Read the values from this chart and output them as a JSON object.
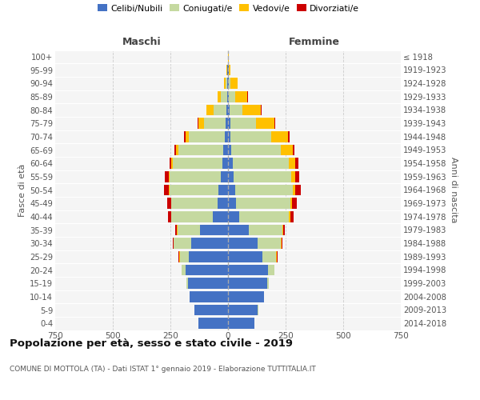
{
  "age_groups": [
    "0-4",
    "5-9",
    "10-14",
    "15-19",
    "20-24",
    "25-29",
    "30-34",
    "35-39",
    "40-44",
    "45-49",
    "50-54",
    "55-59",
    "60-64",
    "65-69",
    "70-74",
    "75-79",
    "80-84",
    "85-89",
    "90-94",
    "95-99",
    "100+"
  ],
  "birth_years": [
    "2014-2018",
    "2009-2013",
    "2004-2008",
    "1999-2003",
    "1994-1998",
    "1989-1993",
    "1984-1988",
    "1979-1983",
    "1974-1978",
    "1969-1973",
    "1964-1968",
    "1959-1963",
    "1954-1958",
    "1949-1953",
    "1944-1948",
    "1939-1943",
    "1934-1938",
    "1929-1933",
    "1924-1928",
    "1919-1923",
    "≤ 1918"
  ],
  "colors": {
    "celibi": "#4472c4",
    "coniugati": "#c5d9a0",
    "vedovi": "#ffc000",
    "divorziati": "#cc0000"
  },
  "maschi": {
    "celibi": [
      130,
      145,
      165,
      175,
      185,
      170,
      160,
      120,
      65,
      45,
      40,
      30,
      25,
      20,
      15,
      10,
      8,
      5,
      3,
      2,
      0
    ],
    "coniugati": [
      0,
      1,
      2,
      5,
      15,
      40,
      75,
      100,
      180,
      200,
      215,
      225,
      215,
      195,
      155,
      95,
      55,
      25,
      8,
      2,
      0
    ],
    "vedovi": [
      0,
      0,
      0,
      1,
      2,
      2,
      2,
      2,
      2,
      2,
      2,
      3,
      5,
      10,
      15,
      25,
      30,
      15,
      6,
      2,
      0
    ],
    "divorziati": [
      0,
      0,
      0,
      0,
      1,
      2,
      3,
      8,
      15,
      18,
      20,
      15,
      10,
      8,
      5,
      2,
      2,
      1,
      1,
      0,
      0
    ]
  },
  "femmine": {
    "celibi": [
      115,
      130,
      155,
      170,
      175,
      150,
      130,
      90,
      50,
      35,
      30,
      25,
      20,
      15,
      12,
      10,
      8,
      5,
      3,
      2,
      0
    ],
    "coniugati": [
      0,
      1,
      2,
      8,
      25,
      60,
      100,
      145,
      215,
      235,
      250,
      250,
      245,
      215,
      175,
      110,
      55,
      25,
      8,
      2,
      0
    ],
    "vedovi": [
      0,
      0,
      0,
      0,
      1,
      2,
      2,
      3,
      5,
      8,
      10,
      15,
      25,
      50,
      75,
      80,
      80,
      55,
      30,
      8,
      2
    ],
    "divorziati": [
      0,
      0,
      0,
      0,
      1,
      2,
      3,
      10,
      15,
      20,
      25,
      18,
      15,
      8,
      5,
      4,
      3,
      2,
      1,
      0,
      0
    ]
  },
  "title": "Popolazione per età, sesso e stato civile - 2019",
  "subtitle": "COMUNE DI MOTTOLA (TA) - Dati ISTAT 1° gennaio 2019 - Elaborazione TUTTITALIA.IT",
  "xlabel_maschi": "Maschi",
  "xlabel_femmine": "Femmine",
  "ylabel": "Fasce di età",
  "ylabel_right": "Anni di nascita",
  "legend_labels": [
    "Celibi/Nubili",
    "Coniugati/e",
    "Vedovi/e",
    "Divorziati/e"
  ],
  "xlim": 750,
  "plot_bg": "#f5f5f5",
  "fig_bg": "#ffffff",
  "grid_color": "#ffffff"
}
